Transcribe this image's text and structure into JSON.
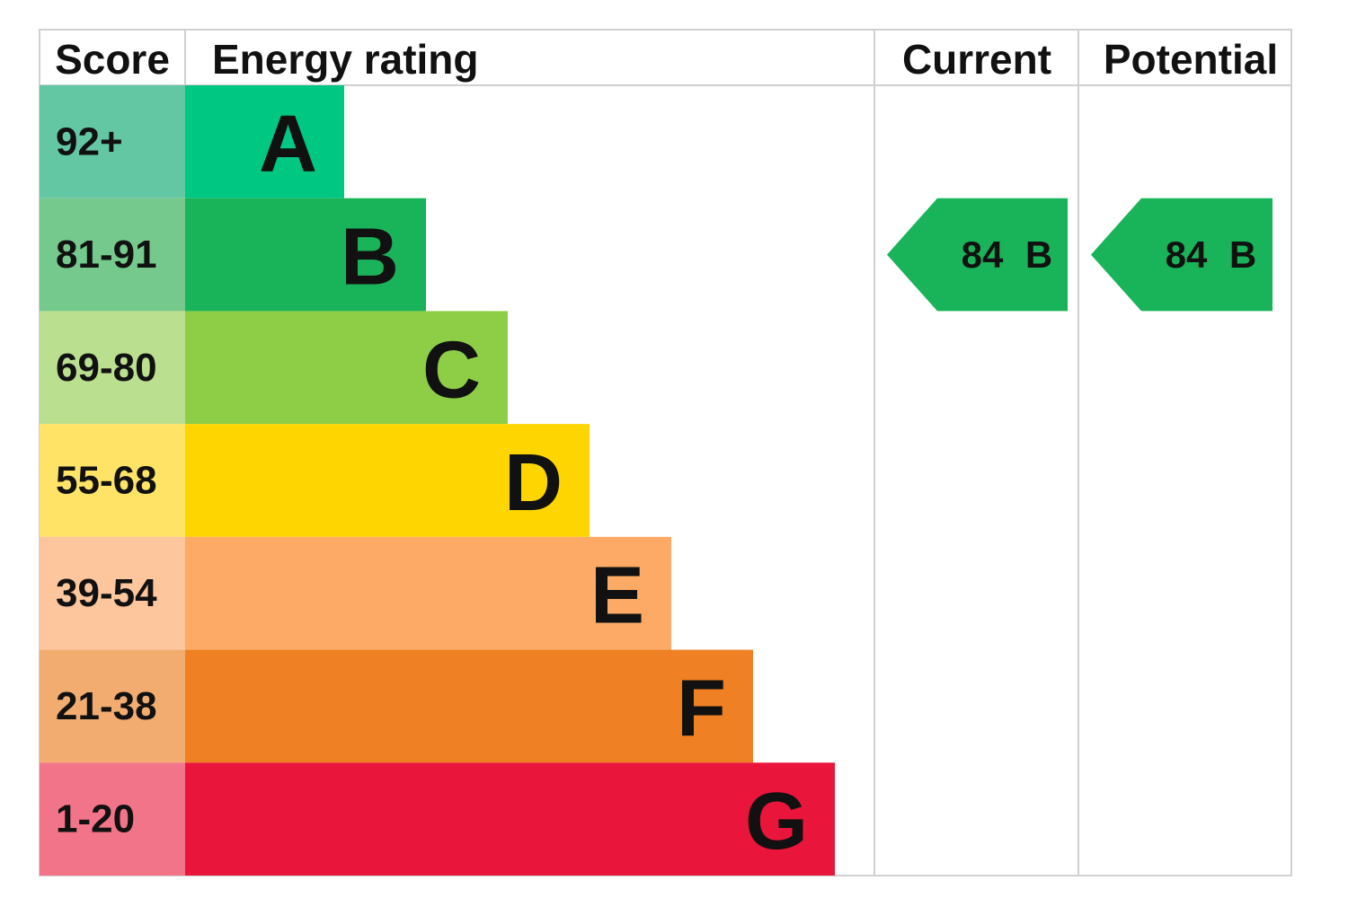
{
  "header": {
    "score": "Score",
    "energy_rating": "Energy rating",
    "current": "Current",
    "potential": "Potential"
  },
  "rows": [
    {
      "score": "92+",
      "band": "A",
      "color": "#00c781",
      "score_color": "#64c7a4"
    },
    {
      "score": "81-91",
      "band": "B",
      "color": "#19b459",
      "score_color": "#75c98c"
    },
    {
      "score": "69-80",
      "band": "C",
      "color": "#8dce46",
      "score_color": "#badf8f"
    },
    {
      "score": "55-68",
      "band": "D",
      "color": "#ffd500",
      "score_color": "#ffe366"
    },
    {
      "score": "39-54",
      "band": "E",
      "color": "#fcaa65",
      "score_color": "#fdc69c"
    },
    {
      "score": "21-38",
      "band": "F",
      "color": "#ef8023",
      "score_color": "#f3ac70"
    },
    {
      "score": "1-20",
      "band": "G",
      "color": "#e9153b",
      "score_color": "#f27489"
    }
  ],
  "current": {
    "score": 84,
    "band": "B"
  },
  "potential": {
    "score": 84,
    "band": "B"
  }
}
